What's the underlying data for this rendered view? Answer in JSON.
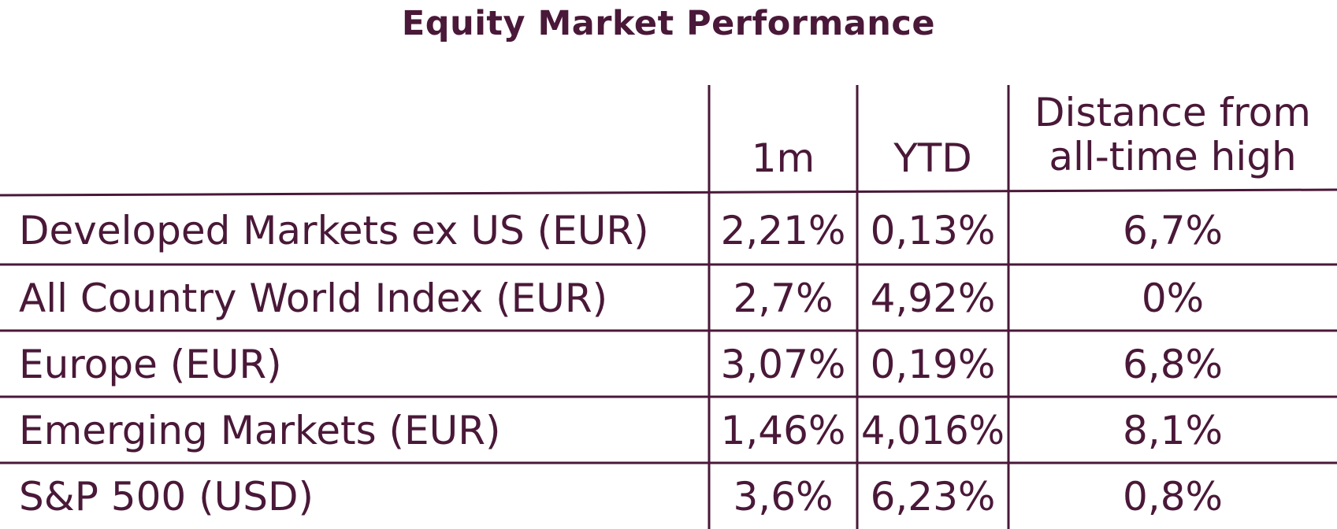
{
  "chart_data": {
    "type": "table",
    "title": "Equity Market Performance",
    "columns": [
      "",
      "1m",
      "YTD",
      "Distance from all-time high"
    ],
    "header_lines": {
      "c1": [
        "1m"
      ],
      "c2": [
        "YTD"
      ],
      "c3": [
        "Distance from",
        "all-time high"
      ]
    },
    "rows": [
      {
        "name": "Developed Markets ex US (EUR)",
        "m1": "2,21%",
        "ytd": "0,13%",
        "ath": "6,7%"
      },
      {
        "name": "All Country World Index (EUR)",
        "m1": "2,7%",
        "ytd": "4,92%",
        "ath": "0%"
      },
      {
        "name": "Europe (EUR)",
        "m1": "3,07%",
        "ytd": "0,19%",
        "ath": "6,8%"
      },
      {
        "name": "Emerging Markets (EUR)",
        "m1": "1,46%",
        "ytd": "4,016%",
        "ath": "8,1%"
      },
      {
        "name": "S&P 500 (USD)",
        "m1": "3,6%",
        "ytd": "6,23%",
        "ath": "0,8%"
      }
    ]
  },
  "colors": {
    "text": "#4a1838",
    "line": "#4a1838",
    "background": "#ffffff"
  }
}
